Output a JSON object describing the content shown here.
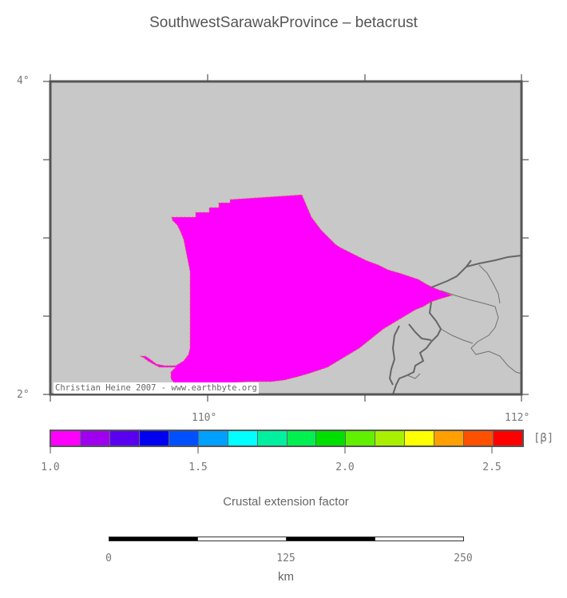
{
  "title": "SouthwestSarawakProvince – betacrust",
  "map": {
    "lat_labels": [
      "4°",
      "2°"
    ],
    "lon_labels": [
      "110°",
      "112°"
    ],
    "credit": "Christian Heine 2007 - www.earthbyte.org",
    "background_color": "#c8c8c8",
    "province_color": "#ff00ff",
    "coastline_color": "#666666"
  },
  "colorbar": {
    "colors": [
      "#ff00ff",
      "#a000f0",
      "#5a00f0",
      "#0000f0",
      "#0050ff",
      "#00a0ff",
      "#00ffff",
      "#00f0a0",
      "#00f050",
      "#00e000",
      "#60f000",
      "#a8f000",
      "#ffff00",
      "#ffa000",
      "#ff5000",
      "#ff0000"
    ],
    "unit": "[β]",
    "tick_labels": [
      "1.0",
      "1.5",
      "2.0",
      "2.5"
    ],
    "label": "Crustal extension factor"
  },
  "scalebar": {
    "tick_labels": [
      "0",
      "125",
      "250"
    ],
    "unit": "km"
  }
}
